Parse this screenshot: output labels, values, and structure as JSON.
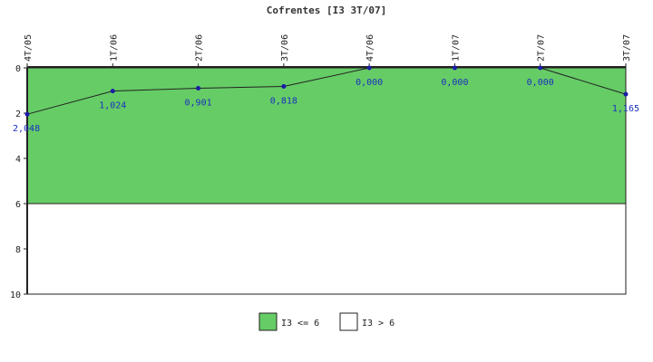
{
  "chart_data": {
    "type": "line",
    "title": "Cofrentes [I3 3T/07]",
    "categories": [
      "4T/05",
      "1T/06",
      "2T/06",
      "3T/06",
      "4T/06",
      "1T/07",
      "2T/07",
      "3T/07"
    ],
    "series": [
      {
        "values": [
          2.048,
          1.024,
          0.901,
          0.818,
          0.0,
          0.0,
          0.0,
          1.165
        ],
        "labels": [
          "2,048",
          "1,024",
          "0,901",
          "0,818",
          "0,000",
          "0,000",
          "0,000",
          "1,165"
        ],
        "color": "#222222",
        "marker_color": "#1b1ba8"
      }
    ],
    "ylim": [
      0,
      10
    ],
    "y_inverted": true,
    "yticks": [
      "0",
      "2",
      "4",
      "6",
      "8",
      "10"
    ],
    "ytick_values": [
      0,
      2,
      4,
      6,
      8,
      10
    ],
    "bands": [
      {
        "name": "I3 <= 6",
        "from": 0,
        "to": 6,
        "color": "#66cc66"
      },
      {
        "name": "I3 > 6",
        "from": 6,
        "to": 10,
        "color": "#ffffff"
      }
    ],
    "legend_position": "bottom-center",
    "grid": false
  }
}
